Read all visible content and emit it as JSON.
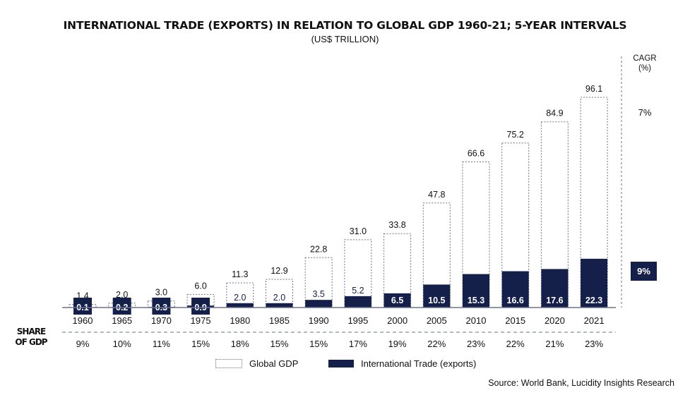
{
  "chart_data": {
    "type": "bar",
    "title": "INTERNATIONAL TRADE (EXPORTS) IN RELATION TO GLOBAL GDP 1960-21; 5-YEAR INTERVALS",
    "subtitle": "(US$ TRILLION)",
    "categories": [
      "1960",
      "1965",
      "1970",
      "1975",
      "1980",
      "1985",
      "1990",
      "1995",
      "2000",
      "2005",
      "2010",
      "2015",
      "2020",
      "2021"
    ],
    "series": [
      {
        "name": "Global GDP",
        "style": "dotted-outline",
        "values": [
          1.4,
          2.0,
          3.0,
          6.0,
          11.3,
          12.9,
          22.8,
          31.0,
          33.8,
          47.8,
          66.6,
          75.2,
          84.9,
          96.1
        ]
      },
      {
        "name": "International Trade (exports)",
        "color": "#14204a",
        "values": [
          0.1,
          0.2,
          0.3,
          0.9,
          2.0,
          2.0,
          3.5,
          5.2,
          6.5,
          10.5,
          15.3,
          16.6,
          17.6,
          22.3
        ]
      }
    ],
    "share_of_gdp": {
      "label": "SHARE OF GDP",
      "values": [
        "9%",
        "10%",
        "11%",
        "15%",
        "18%",
        "15%",
        "15%",
        "17%",
        "19%",
        "22%",
        "23%",
        "22%",
        "21%",
        "23%"
      ]
    },
    "cagr": {
      "label_line1": "CAGR",
      "label_line2": "(%)",
      "gdp": "7%",
      "trade": "9%"
    },
    "ylim": [
      0,
      100
    ],
    "grid": false,
    "legend_position": "bottom",
    "source": "Source: World Bank, Lucidity Insights Research"
  }
}
